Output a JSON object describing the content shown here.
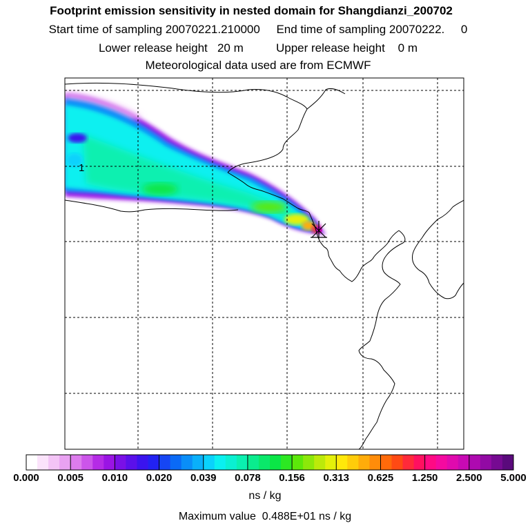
{
  "header": {
    "title": "Footprint emission sensitivity in nested domain for Shangdianzi_200702",
    "sampling_line": "Start time of sampling 20070221.210000     End time of sampling 20070222.     0",
    "release_line": "Lower release height   20 m          Upper release height    0 m",
    "met_line": "Meteorological data used are from ECMWF"
  },
  "map": {
    "contour_label": "1",
    "receptor_marker": "star-icon"
  },
  "chart_data": {
    "type": "heatmap",
    "title": "Footprint emission sensitivity in nested domain for Shangdianzi_200702",
    "colorbar": {
      "tick_labels": [
        "0.000",
        "0.005",
        "0.010",
        "0.020",
        "0.039",
        "0.078",
        "0.156",
        "0.313",
        "0.625",
        "1.250",
        "2.500",
        "5.000"
      ],
      "tick_values": [
        0.0,
        0.005,
        0.01,
        0.02,
        0.039,
        0.078,
        0.156,
        0.313,
        0.625,
        1.25,
        2.5,
        5.0
      ],
      "colors": [
        "#ffffff",
        "#fbe3fb",
        "#f3c4f6",
        "#e9a2f2",
        "#dd7ced",
        "#cc55ea",
        "#b52be6",
        "#9a14e4",
        "#7a10e6",
        "#5a10ea",
        "#3a14ee",
        "#2222f2",
        "#1646f4",
        "#0a6af6",
        "#0a8ef8",
        "#0ab0fa",
        "#0ad2fc",
        "#0af0f0",
        "#0af0d2",
        "#0af0b0",
        "#0aec8e",
        "#0ae86a",
        "#0ae646",
        "#2ce822",
        "#5ce80a",
        "#8ce80a",
        "#bcea0a",
        "#e4f00a",
        "#ffe80a",
        "#ffcc0a",
        "#ffac0a",
        "#ff8c0a",
        "#ff6a0a",
        "#ff4a14",
        "#ff2a3a",
        "#ff1060",
        "#ff0a84",
        "#f40aa0",
        "#e00aae",
        "#c80ab4",
        "#ae0ab0",
        "#920aa4",
        "#760a92",
        "#5a0a7c"
      ],
      "units": "ns / kg"
    },
    "max_value_text": "Maximum value  0.488E+01 ns / kg",
    "max_value": 4.88
  }
}
